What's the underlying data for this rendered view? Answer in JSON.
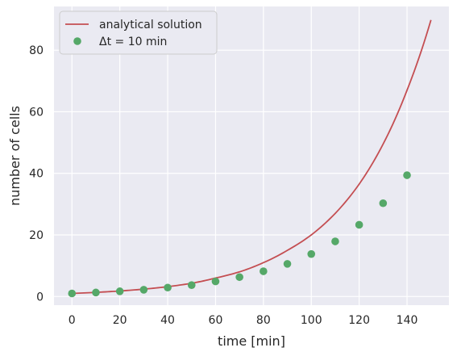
{
  "chart_data": {
    "type": "line",
    "xlabel": "time [min]",
    "ylabel": "number of cells",
    "xlim": [
      -7.5,
      157.5
    ],
    "ylim": [
      -2.8,
      94.2
    ],
    "xticks": [
      0,
      20,
      40,
      60,
      80,
      100,
      120,
      140
    ],
    "yticks": [
      0,
      20,
      40,
      60,
      80
    ],
    "grid": true,
    "legend_position": "top-left",
    "colors": {
      "background": "#eaeaf2",
      "grid": "#ffffff",
      "line": "#c44e52",
      "points": "#55a868"
    },
    "series": [
      {
        "name": "analytical solution",
        "kind": "line",
        "x": [
          0,
          10,
          20,
          30,
          40,
          50,
          60,
          70,
          80,
          90,
          100,
          110,
          120,
          130,
          140,
          150
        ],
        "y": [
          1.0,
          1.35,
          1.8,
          2.4,
          3.2,
          4.3,
          6.0,
          8.0,
          11.0,
          15.0,
          20.0,
          27.0,
          36.5,
          49.5,
          67.0,
          89.8
        ]
      },
      {
        "name": "Δt = 10 min",
        "kind": "scatter",
        "x": [
          0,
          10,
          20,
          30,
          40,
          50,
          60,
          70,
          80,
          90,
          100,
          110,
          120,
          130,
          140
        ],
        "y": [
          1.0,
          1.3,
          1.7,
          2.2,
          2.9,
          3.7,
          4.9,
          6.3,
          8.2,
          10.6,
          13.8,
          17.9,
          23.3,
          30.3,
          39.4
        ]
      }
    ]
  }
}
